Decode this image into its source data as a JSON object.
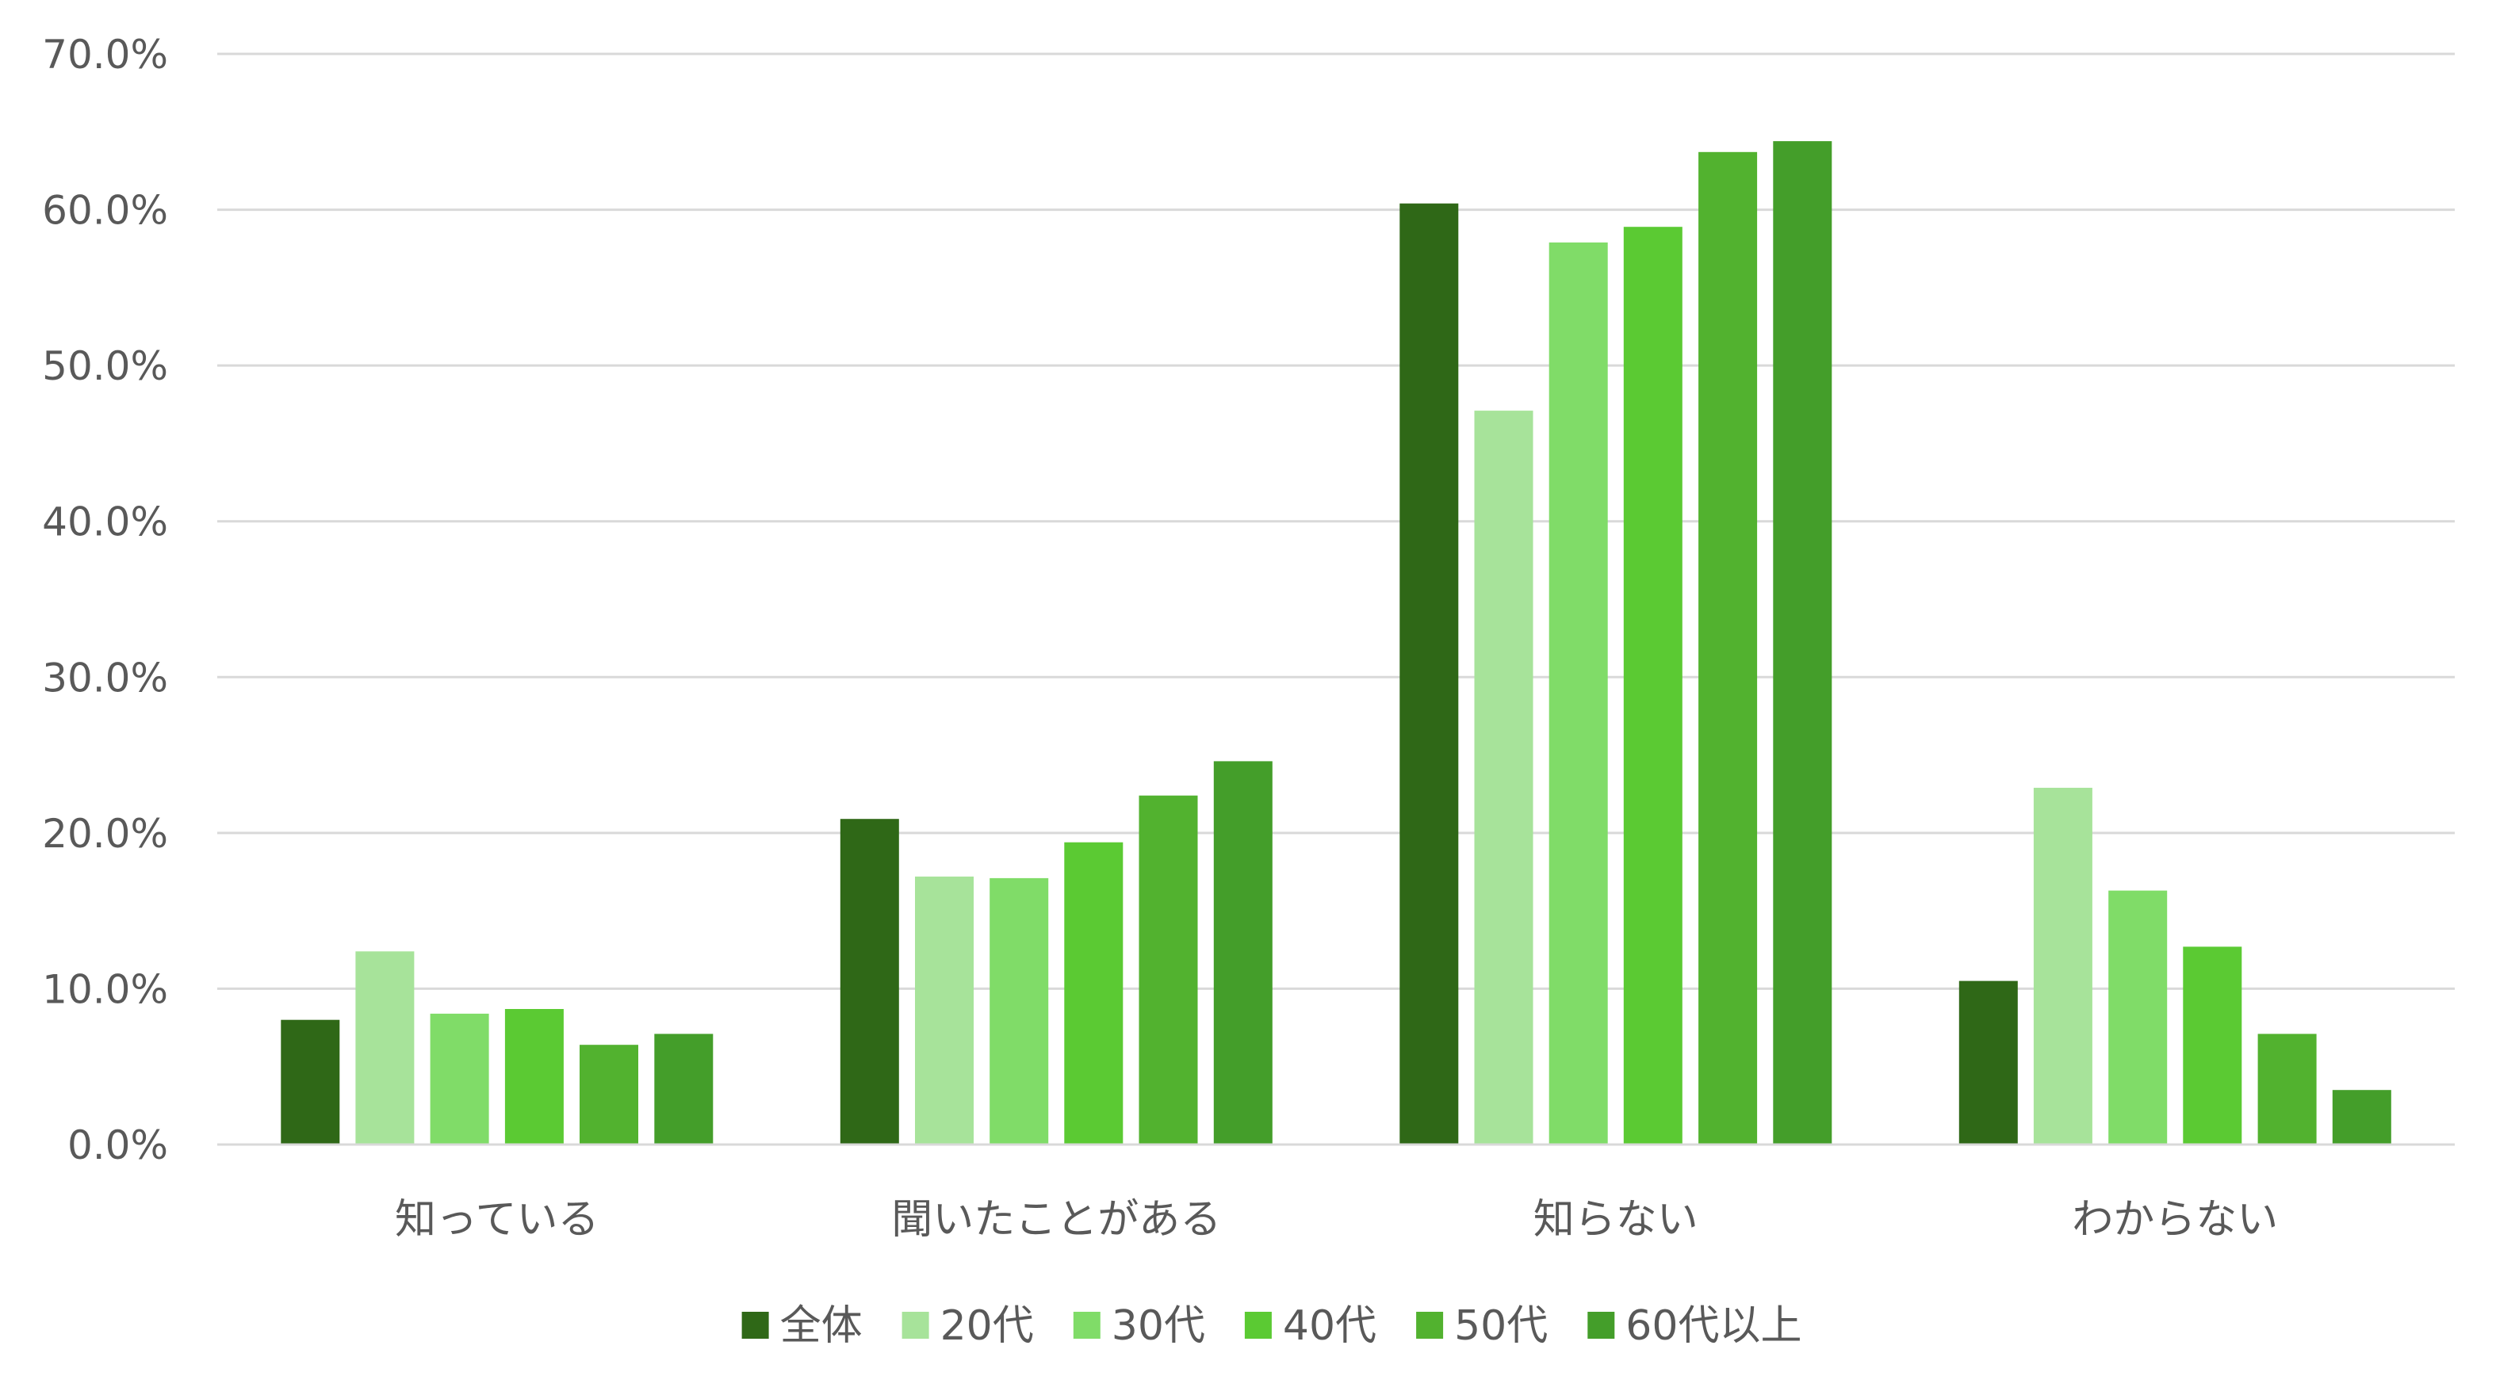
{
  "chart_data": {
    "type": "bar",
    "title": "",
    "xlabel": "",
    "ylabel": "",
    "ylim": [
      0,
      70
    ],
    "y_ticks": [
      0,
      10,
      20,
      30,
      40,
      50,
      60,
      70
    ],
    "y_tick_labels": [
      "0.0%",
      "10.0%",
      "20.0%",
      "30.0%",
      "40.0%",
      "50.0%",
      "60.0%",
      "70.0%"
    ],
    "grid": true,
    "legend_position": "bottom",
    "categories": [
      "知っている",
      "聞いたことがある",
      "知らない",
      "わからない"
    ],
    "series": [
      {
        "name": "全体",
        "color": "#2f6817",
        "values": [
          8.0,
          20.9,
          60.4,
          10.5
        ]
      },
      {
        "name": "20代",
        "color": "#a7e39a",
        "values": [
          12.4,
          17.2,
          47.1,
          22.9
        ]
      },
      {
        "name": "30代",
        "color": "#80dc68",
        "values": [
          8.4,
          17.1,
          57.9,
          16.3
        ]
      },
      {
        "name": "40代",
        "color": "#5bca33",
        "values": [
          8.7,
          19.4,
          58.9,
          12.7
        ]
      },
      {
        "name": "50代",
        "color": "#52b22f",
        "values": [
          6.4,
          22.4,
          63.7,
          7.1
        ]
      },
      {
        "name": "60代以上",
        "color": "#449e2a",
        "values": [
          7.1,
          24.6,
          64.4,
          3.5
        ]
      }
    ]
  }
}
